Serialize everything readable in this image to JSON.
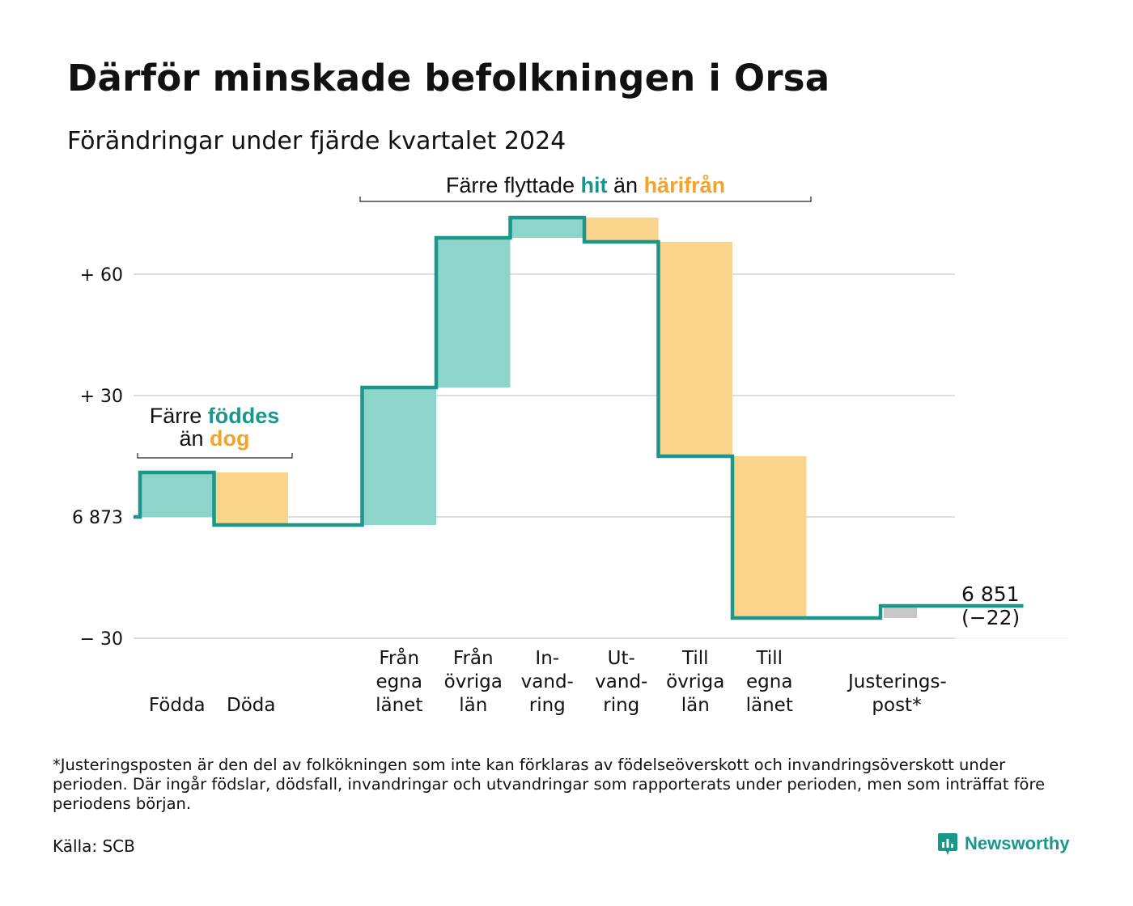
{
  "header": {
    "title": "Därför minskade befolkningen i Orsa",
    "subtitle": "Förändringar under fjärde kvartalet 2024"
  },
  "annotations": {
    "births": {
      "pre": "Färre",
      "hi1": "föddes",
      "mid": "än",
      "hi2": "dog"
    },
    "moves": {
      "pre": "Färre flyttade",
      "hi1": "hit",
      "mid": "än",
      "hi2": "härifrån"
    }
  },
  "chart_data": {
    "type": "waterfall",
    "start_value": 6873,
    "end_value": 6851,
    "end_value_label": "6 851",
    "net_change_label": "(−22)",
    "y_ticks": [
      {
        "value": 60,
        "label": "+ 60"
      },
      {
        "value": 30,
        "label": "+ 30"
      },
      {
        "value": 0,
        "label": "6 873"
      },
      {
        "value": -30,
        "label": "− 30"
      }
    ],
    "ylim": [
      -30,
      70
    ],
    "grid": true,
    "steps": [
      {
        "category": "Födda",
        "label": "Födda",
        "change": 11,
        "kind": "inflow"
      },
      {
        "category": "Döda",
        "label": "Döda",
        "change": -13,
        "kind": "outflow"
      },
      {
        "category": "",
        "label": "",
        "change": 0,
        "kind": "gap"
      },
      {
        "category": "Från egna länet",
        "label": "Från\negna\nlänet",
        "change": 34,
        "kind": "inflow"
      },
      {
        "category": "Från övriga län",
        "label": "Från\növriga\nlän",
        "change": 37,
        "kind": "inflow"
      },
      {
        "category": "Invandring",
        "label": "In-\nvand-\nring",
        "change": 5,
        "kind": "inflow"
      },
      {
        "category": "Utvandring",
        "label": "Ut-\nvand-\nring",
        "change": -6,
        "kind": "outflow"
      },
      {
        "category": "Till övriga län",
        "label": "Till\növriga\nlän",
        "change": -53,
        "kind": "outflow"
      },
      {
        "category": "Till egna länet",
        "label": "Till\negna\nlänet",
        "change": -40,
        "kind": "outflow"
      },
      {
        "category": "",
        "label": "",
        "change": 0,
        "kind": "gap"
      },
      {
        "category": "Justeringspost*",
        "label": "Justerings-\npost*",
        "change": 3,
        "kind": "adjustment"
      }
    ],
    "colors": {
      "inflow": "#8dd5cb",
      "outflow": "#f9d48a",
      "adjustment": "#c8c8c8",
      "line": "#1a968a",
      "grid": "#dedede"
    }
  },
  "footer": {
    "footnote": "*Justeringsposten är den del av folkökningen som inte kan förklaras av födelseöverskott och invandringsöverskott under perioden. Där ingår födslar, dödsfall, invandringar och utvandringar som rapporterats under perioden, men som inträffat före periodens början.",
    "source": "Källa: SCB",
    "brand": "Newsworthy"
  }
}
